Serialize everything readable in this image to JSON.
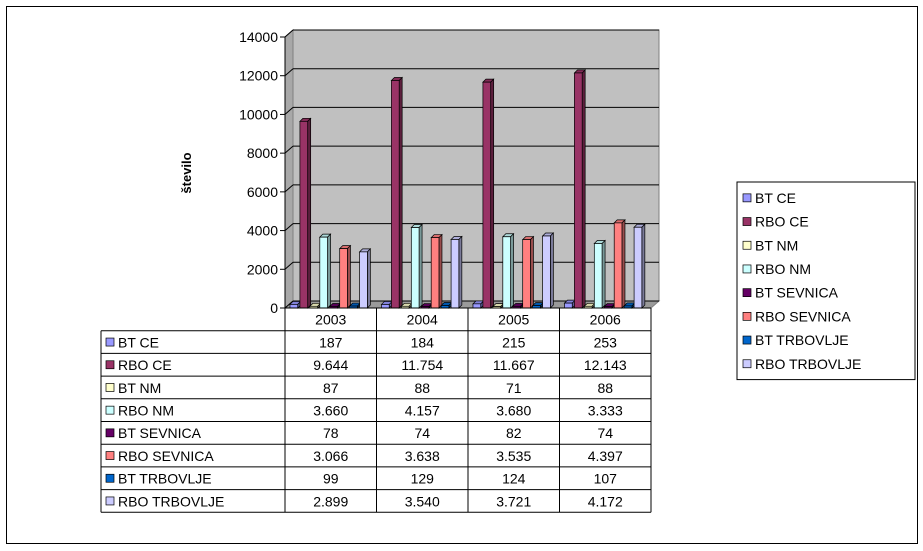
{
  "chart_data": {
    "type": "bar",
    "ylabel": "število",
    "xlabel": "",
    "ylim": [
      0,
      14000
    ],
    "yticks": [
      "0",
      "2000",
      "4000",
      "6000",
      "8000",
      "10000",
      "12000",
      "14000"
    ],
    "categories": [
      "2003",
      "2004",
      "2005",
      "2006"
    ],
    "grid": true,
    "legend_position": "right",
    "series": [
      {
        "name": "BT CE",
        "color": "#9999FF",
        "values": [
          187,
          184,
          215,
          253
        ],
        "labels": [
          "187",
          "184",
          "215",
          "253"
        ]
      },
      {
        "name": "RBO CE",
        "color": "#993366",
        "values": [
          9644,
          11754,
          11667,
          12143
        ],
        "labels": [
          "9.644",
          "11.754",
          "11.667",
          "12.143"
        ]
      },
      {
        "name": "BT NM",
        "color": "#FFFFCC",
        "values": [
          87,
          88,
          71,
          88
        ],
        "labels": [
          "87",
          "88",
          "71",
          "88"
        ]
      },
      {
        "name": "RBO NM",
        "color": "#CCFFFF",
        "values": [
          3660,
          4157,
          3680,
          3333
        ],
        "labels": [
          "3.660",
          "4.157",
          "3.680",
          "3.333"
        ]
      },
      {
        "name": "BT SEVNICA",
        "color": "#660066",
        "values": [
          78,
          74,
          82,
          74
        ],
        "labels": [
          "78",
          "74",
          "82",
          "74"
        ]
      },
      {
        "name": "RBO SEVNICA",
        "color": "#FF8080",
        "values": [
          3066,
          3638,
          3535,
          4397
        ],
        "labels": [
          "3.066",
          "3.638",
          "3.535",
          "4.397"
        ]
      },
      {
        "name": "BT TRBOVLJE",
        "color": "#0066CC",
        "values": [
          99,
          129,
          124,
          107
        ],
        "labels": [
          "99",
          "129",
          "124",
          "107"
        ]
      },
      {
        "name": "RBO TRBOVLJE",
        "color": "#CCCCFF",
        "values": [
          2899,
          3540,
          3721,
          4172
        ],
        "labels": [
          "2.899",
          "3.540",
          "3.721",
          "4.172"
        ]
      }
    ]
  }
}
